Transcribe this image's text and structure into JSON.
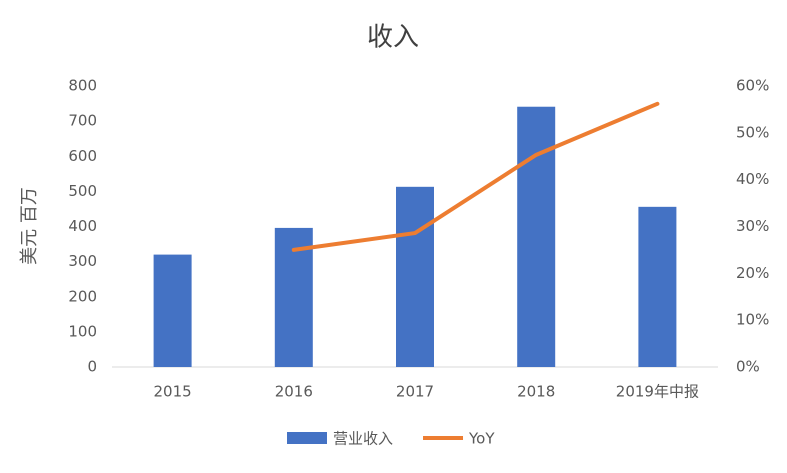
{
  "chart_data": {
    "type": "bar-line",
    "title": "收入",
    "y_label": "美元 百万",
    "categories": [
      "2015",
      "2016",
      "2017",
      "2018",
      "2019年中报"
    ],
    "series": [
      {
        "name": "营业收入",
        "type": "bar",
        "color": "#4472c4",
        "values": [
          320,
          396,
          513,
          741,
          456
        ]
      },
      {
        "name": "YoY",
        "type": "line",
        "axis": "y2",
        "color": "#ed7d31",
        "values": [
          null,
          25,
          28.6,
          45.3,
          56.2
        ]
      }
    ],
    "ylim": [
      0,
      800
    ],
    "yticks": [
      0,
      100,
      200,
      300,
      400,
      500,
      600,
      700,
      800
    ],
    "y2lim": [
      0,
      60
    ],
    "y2ticks": [
      {
        "value": 0,
        "label": "0%"
      },
      {
        "value": 10,
        "label": "10%"
      },
      {
        "value": 20,
        "label": "20%"
      },
      {
        "value": 30,
        "label": "30%"
      },
      {
        "value": 40,
        "label": "40%"
      },
      {
        "value": 50,
        "label": "50%"
      },
      {
        "value": 60,
        "label": "60%"
      }
    ],
    "legend": "bottom"
  }
}
